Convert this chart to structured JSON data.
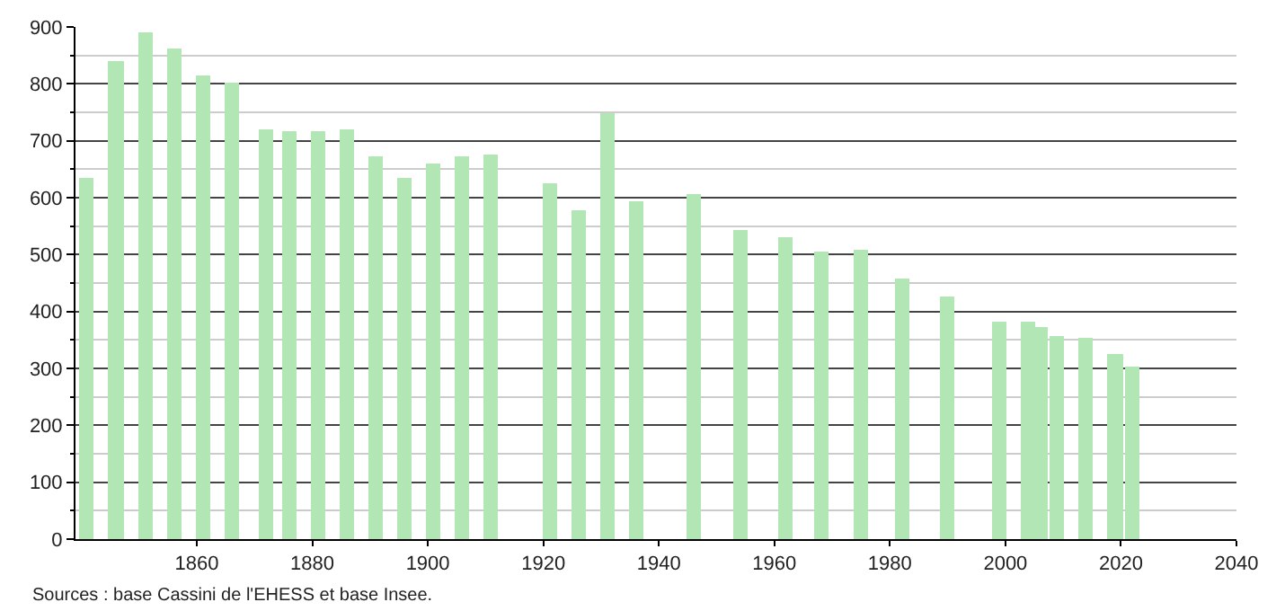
{
  "chart_data": {
    "type": "bar",
    "x": [
      1841,
      1846,
      1851,
      1856,
      1861,
      1866,
      1872,
      1876,
      1881,
      1886,
      1891,
      1896,
      1901,
      1906,
      1911,
      1921,
      1926,
      1931,
      1936,
      1946,
      1954,
      1962,
      1968,
      1975,
      1982,
      1990,
      1999,
      2004,
      2006,
      2009,
      2014,
      2019,
      2022
    ],
    "values": [
      635,
      840,
      889,
      861,
      814,
      803,
      721,
      716,
      718,
      721,
      672,
      635,
      659,
      674,
      677,
      624,
      578,
      748,
      593,
      606,
      544,
      529,
      505,
      510,
      457,
      425,
      382,
      382,
      373,
      358,
      354,
      326,
      302
    ],
    "color": "#b3e6b5",
    "xlim": [
      1839,
      2040
    ],
    "xticks": [
      1860,
      1880,
      1900,
      1920,
      1940,
      1960,
      1980,
      2000,
      2020,
      2040
    ],
    "ylim": [
      0,
      900
    ],
    "yticks": [
      0,
      {
        "value": 50,
        "label": null
      },
      100,
      {
        "value": 150,
        "label": null
      },
      200,
      {
        "value": 250,
        "label": null
      },
      300,
      {
        "value": 350,
        "label": null
      },
      400,
      {
        "value": 450,
        "label": null
      },
      500,
      {
        "value": 550,
        "label": null
      },
      600,
      {
        "value": 650,
        "label": null
      },
      700,
      {
        "value": 750,
        "label": null
      },
      800,
      {
        "value": 850,
        "label": null
      },
      900
    ],
    "grid": "y",
    "annotations": [
      "Sources : base Cassini de l'EHESS et base Insee."
    ]
  }
}
